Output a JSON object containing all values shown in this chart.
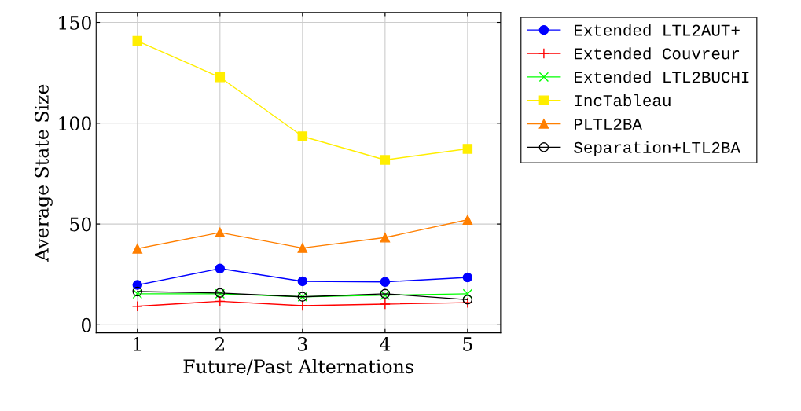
{
  "chart_data": {
    "type": "line",
    "xlabel": "Future/Past Alternations",
    "ylabel": "Average State Size",
    "x": [
      1,
      2,
      3,
      4,
      5
    ],
    "xlim": [
      0.5,
      5.4
    ],
    "xticks": [
      1,
      2,
      3,
      4,
      5
    ],
    "ylim": [
      -4,
      155
    ],
    "yticks": [
      0,
      50,
      100,
      150
    ],
    "grid": true,
    "legend": "top right",
    "series": [
      {
        "name": "Extended LTL2AUT+",
        "color": "#0000ff",
        "marker": "circle",
        "values": [
          19.8,
          27.9,
          21.6,
          21.3,
          23.5
        ]
      },
      {
        "name": "Extended Couvreur",
        "color": "#ff0000",
        "marker": "plus",
        "values": [
          9.2,
          11.7,
          9.5,
          10.3,
          11.0
        ]
      },
      {
        "name": "Extended LTL2BUCHI",
        "color": "#00ff00",
        "marker": "cross",
        "values": [
          15.4,
          15.4,
          13.9,
          14.7,
          15.4
        ]
      },
      {
        "name": "IncTableau",
        "color": "#ffee00",
        "marker": "square",
        "values": [
          140.8,
          122.8,
          93.5,
          81.8,
          87.3
        ]
      },
      {
        "name": "PLTL2BA",
        "color": "#ff7f00",
        "marker": "triangle",
        "values": [
          37.8,
          45.8,
          38.1,
          43.3,
          52.1
        ]
      },
      {
        "name": "Separation+LTL2BA",
        "color": "#000000",
        "marker": "open circle",
        "values": [
          16.5,
          15.8,
          13.9,
          15.4,
          12.5
        ]
      }
    ]
  }
}
